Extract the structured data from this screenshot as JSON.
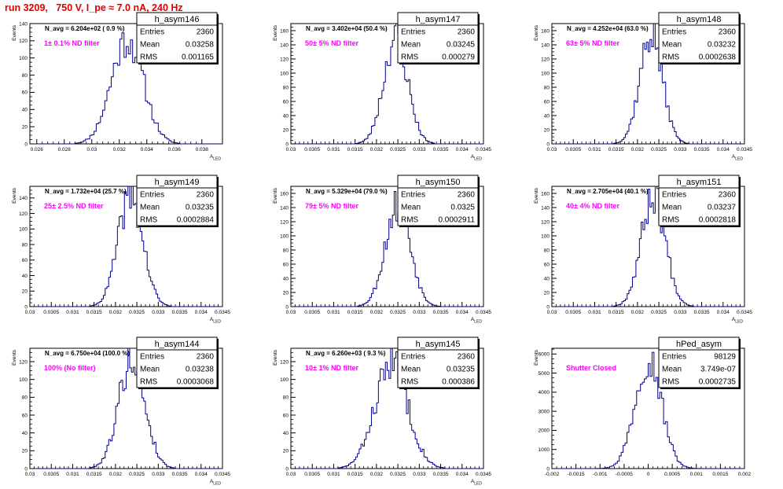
{
  "canvas_title": "run 3209,   750 V, I_pe ≈ 7.0 nA, 240 Hz",
  "colors": {
    "hist": "#00008b",
    "annotation": "#ff00ff",
    "title": "#e00000",
    "frame": "#000000"
  },
  "chart_data": [
    {
      "type": "bar",
      "name": "h_asym146",
      "ylabel": "Events",
      "xlabel": "A_LED",
      "nav": "N_avg = 6.204e+02 ( 0.9 %)",
      "annotation": "1± 0.1% ND filter",
      "stats": {
        "entries_label": "Entries",
        "entries": "2360",
        "mean_label": "Mean",
        "mean": "0.03258",
        "rms_label": "RMS",
        "rms": "0.001165"
      },
      "xlim": [
        0.0255,
        0.0395
      ],
      "xticks": [
        0.026,
        0.028,
        0.03,
        0.032,
        0.034,
        0.036,
        0.038
      ],
      "xtick_labels": [
        "0.026",
        "0.028",
        "0.03",
        "0.032",
        "0.034",
        "0.036",
        "0.038"
      ],
      "ylim": [
        0,
        140
      ],
      "yticks": [
        0,
        20,
        40,
        60,
        80,
        100,
        120,
        140
      ],
      "ytick_labels": [
        "0",
        "20",
        "40",
        "60",
        "80",
        "100",
        "120",
        "140"
      ],
      "hist": {
        "mean": 0.03258,
        "sigma": 0.001165,
        "peak": 122,
        "bins": 90,
        "seed": 11
      }
    },
    {
      "type": "bar",
      "name": "h_asym147",
      "ylabel": "Events",
      "xlabel": "A_LED",
      "nav": "N_avg = 3.402e+04 (50.4 %)",
      "annotation": "50± 5% ND filter",
      "stats": {
        "entries_label": "Entries",
        "entries": "2360",
        "mean_label": "Mean",
        "mean": "0.03245",
        "rms_label": "RMS",
        "rms": "0.000279"
      },
      "xlim": [
        0.03,
        0.0345
      ],
      "xticks": [
        0.03,
        0.0305,
        0.031,
        0.0315,
        0.032,
        0.0325,
        0.033,
        0.0335,
        0.034,
        0.0345
      ],
      "xtick_labels": [
        "0.03",
        "0.0305",
        "0.031",
        "0.0315",
        "0.032",
        "0.0325",
        "0.033",
        "0.0335",
        "0.034",
        "0.0345"
      ],
      "ylim": [
        0,
        170
      ],
      "yticks": [
        0,
        20,
        40,
        60,
        80,
        100,
        120,
        140,
        160
      ],
      "ytick_labels": [
        "0",
        "20",
        "40",
        "60",
        "80",
        "100",
        "120",
        "140",
        "160"
      ],
      "hist": {
        "mean": 0.03245,
        "sigma": 0.000279,
        "peak": 150,
        "bins": 110,
        "seed": 23
      }
    },
    {
      "type": "bar",
      "name": "h_asym148",
      "ylabel": "Events",
      "xlabel": "A_LED",
      "nav": "N_avg = 4.252e+04 (63.0 %)",
      "annotation": "63± 5% ND filter",
      "stats": {
        "entries_label": "Entries",
        "entries": "2360",
        "mean_label": "Mean",
        "mean": "0.03232",
        "rms_label": "RMS",
        "rms": "0.0002638"
      },
      "xlim": [
        0.03,
        0.0345
      ],
      "xticks": [
        0.03,
        0.0305,
        0.031,
        0.0315,
        0.032,
        0.0325,
        0.033,
        0.0335,
        0.034,
        0.0345
      ],
      "xtick_labels": [
        "0.03",
        "0.0305",
        "0.031",
        "0.0315",
        "0.032",
        "0.0325",
        "0.033",
        "0.0335",
        "0.034",
        "0.0345"
      ],
      "ylim": [
        0,
        170
      ],
      "yticks": [
        0,
        20,
        40,
        60,
        80,
        100,
        120,
        140,
        160
      ],
      "ytick_labels": [
        "0",
        "20",
        "40",
        "60",
        "80",
        "100",
        "120",
        "140",
        "160"
      ],
      "hist": {
        "mean": 0.03232,
        "sigma": 0.0002638,
        "peak": 155,
        "bins": 110,
        "seed": 37
      }
    },
    {
      "type": "bar",
      "name": "h_asym149",
      "ylabel": "Events",
      "xlabel": "A_LED",
      "nav": "N_avg = 1.732e+04 (25.7 %)",
      "annotation": "25± 2.5% ND filter",
      "stats": {
        "entries_label": "Entries",
        "entries": "2360",
        "mean_label": "Mean",
        "mean": "0.03235",
        "rms_label": "RMS",
        "rms": "0.0002884"
      },
      "xlim": [
        0.03,
        0.0345
      ],
      "xticks": [
        0.03,
        0.0305,
        0.031,
        0.0315,
        0.032,
        0.0325,
        0.033,
        0.0335,
        0.034,
        0.0345
      ],
      "xtick_labels": [
        "0.03",
        "0.0305",
        "0.031",
        "0.0315",
        "0.032",
        "0.0325",
        "0.033",
        "0.0335",
        "0.034",
        "0.0345"
      ],
      "ylim": [
        0,
        155
      ],
      "yticks": [
        0,
        20,
        40,
        60,
        80,
        100,
        120,
        140
      ],
      "ytick_labels": [
        "0",
        "20",
        "40",
        "60",
        "80",
        "100",
        "120",
        "140"
      ],
      "hist": {
        "mean": 0.03235,
        "sigma": 0.0002884,
        "peak": 143,
        "bins": 110,
        "seed": 41
      }
    },
    {
      "type": "bar",
      "name": "h_asym150",
      "ylabel": "Events",
      "xlabel": "A_LED",
      "nav": "N_avg = 5.329e+04 (79.0 %)",
      "annotation": "79± 5% ND filter",
      "stats": {
        "entries_label": "Entries",
        "entries": "2360",
        "mean_label": "Mean",
        "mean": "0.0325",
        "rms_label": "RMS",
        "rms": "0.0002911"
      },
      "xlim": [
        0.03,
        0.0345
      ],
      "xticks": [
        0.03,
        0.0305,
        0.031,
        0.0315,
        0.032,
        0.0325,
        0.033,
        0.0335,
        0.034,
        0.0345
      ],
      "xtick_labels": [
        "0.03",
        "0.0305",
        "0.031",
        "0.0315",
        "0.032",
        "0.0325",
        "0.033",
        "0.0335",
        "0.034",
        "0.0345"
      ],
      "ylim": [
        0,
        170
      ],
      "yticks": [
        0,
        20,
        40,
        60,
        80,
        100,
        120,
        140,
        160
      ],
      "ytick_labels": [
        "0",
        "20",
        "40",
        "60",
        "80",
        "100",
        "120",
        "140",
        "160"
      ],
      "hist": {
        "mean": 0.0325,
        "sigma": 0.0002911,
        "peak": 145,
        "bins": 110,
        "seed": 53
      }
    },
    {
      "type": "bar",
      "name": "h_asym151",
      "ylabel": "Events",
      "xlabel": "A_LED",
      "nav": "N_avg = 2.705e+04 (40.1 %)",
      "annotation": "40± 4% ND filter",
      "stats": {
        "entries_label": "Entries",
        "entries": "2360",
        "mean_label": "Mean",
        "mean": "0.03237",
        "rms_label": "RMS",
        "rms": "0.0002818"
      },
      "xlim": [
        0.03,
        0.0345
      ],
      "xticks": [
        0.03,
        0.0305,
        0.031,
        0.0315,
        0.032,
        0.0325,
        0.033,
        0.0335,
        0.034,
        0.0345
      ],
      "xtick_labels": [
        "0.03",
        "0.0305",
        "0.031",
        "0.0315",
        "0.032",
        "0.0325",
        "0.033",
        "0.0335",
        "0.034",
        "0.0345"
      ],
      "ylim": [
        0,
        170
      ],
      "yticks": [
        0,
        20,
        40,
        60,
        80,
        100,
        120,
        140,
        160
      ],
      "ytick_labels": [
        "0",
        "20",
        "40",
        "60",
        "80",
        "100",
        "120",
        "140",
        "160"
      ],
      "hist": {
        "mean": 0.03237,
        "sigma": 0.0002818,
        "peak": 158,
        "bins": 110,
        "seed": 67
      }
    },
    {
      "type": "bar",
      "name": "h_asym144",
      "ylabel": "Events",
      "xlabel": "A_LED",
      "nav": "N_avg = 6.750e+04 (100.0 %)",
      "annotation": "100% (No filter)",
      "stats": {
        "entries_label": "Entries",
        "entries": "2360",
        "mean_label": "Mean",
        "mean": "0.03238",
        "rms_label": "RMS",
        "rms": "0.0003068"
      },
      "xlim": [
        0.03,
        0.0345
      ],
      "xticks": [
        0.03,
        0.0305,
        0.031,
        0.0315,
        0.032,
        0.0325,
        0.033,
        0.0335,
        0.034,
        0.0345
      ],
      "xtick_labels": [
        "0.03",
        "0.0305",
        "0.031",
        "0.0315",
        "0.032",
        "0.0325",
        "0.033",
        "0.0335",
        "0.034",
        "0.0345"
      ],
      "ylim": [
        0,
        135
      ],
      "yticks": [
        0,
        20,
        40,
        60,
        80,
        100,
        120
      ],
      "ytick_labels": [
        "0",
        "20",
        "40",
        "60",
        "80",
        "100",
        "120"
      ],
      "hist": {
        "mean": 0.03238,
        "sigma": 0.0003068,
        "peak": 123,
        "bins": 110,
        "seed": 79
      }
    },
    {
      "type": "bar",
      "name": "h_asym145",
      "ylabel": "Events",
      "xlabel": "A_LED",
      "nav": "N_avg = 6.260e+03 ( 9.3 %)",
      "annotation": "10± 1% ND filter",
      "stats": {
        "entries_label": "Entries",
        "entries": "2360",
        "mean_label": "Mean",
        "mean": "0.03235",
        "rms_label": "RMS",
        "rms": "0.000386"
      },
      "xlim": [
        0.03,
        0.0345
      ],
      "xticks": [
        0.03,
        0.0305,
        0.031,
        0.0315,
        0.032,
        0.0325,
        0.033,
        0.0335,
        0.034,
        0.0345
      ],
      "xtick_labels": [
        "0.03",
        "0.0305",
        "0.031",
        "0.0315",
        "0.032",
        "0.0325",
        "0.033",
        "0.0335",
        "0.034",
        "0.0345"
      ],
      "ylim": [
        0,
        135
      ],
      "yticks": [
        0,
        20,
        40,
        60,
        80,
        100,
        120
      ],
      "ytick_labels": [
        "0",
        "20",
        "40",
        "60",
        "80",
        "100",
        "120"
      ],
      "hist": {
        "mean": 0.03235,
        "sigma": 0.000386,
        "peak": 118,
        "bins": 110,
        "seed": 83
      }
    },
    {
      "type": "bar",
      "name": "hPed_asym",
      "ylabel": "Events",
      "xlabel": "",
      "nav": "",
      "annotation": "Shutter Closed",
      "stats": {
        "entries_label": "Entries",
        "entries": "98129",
        "mean_label": "Mean",
        "mean": "3.749e-07",
        "rms_label": "RMS",
        "rms": "0.0002735"
      },
      "xlim": [
        -0.002,
        0.002
      ],
      "xticks": [
        -0.002,
        -0.0015,
        -0.001,
        -0.0005,
        0,
        0.0005,
        0.001,
        0.0015,
        0.002
      ],
      "xtick_labels": [
        "-0.002",
        "-0.0015",
        "-0.001",
        "-0.0005",
        "0",
        "0.0005",
        "0.001",
        "0.0015",
        "0.002"
      ],
      "ylim": [
        0,
        6300
      ],
      "yticks": [
        0,
        1000,
        2000,
        3000,
        4000,
        5000,
        6000
      ],
      "ytick_labels": [
        "0",
        "1000",
        "2000",
        "3000",
        "4000",
        "5000",
        "6000"
      ],
      "hist": {
        "mean": 3.749e-07,
        "sigma": 0.0002735,
        "peak": 5850,
        "bins": 100,
        "seed": 97
      }
    }
  ]
}
